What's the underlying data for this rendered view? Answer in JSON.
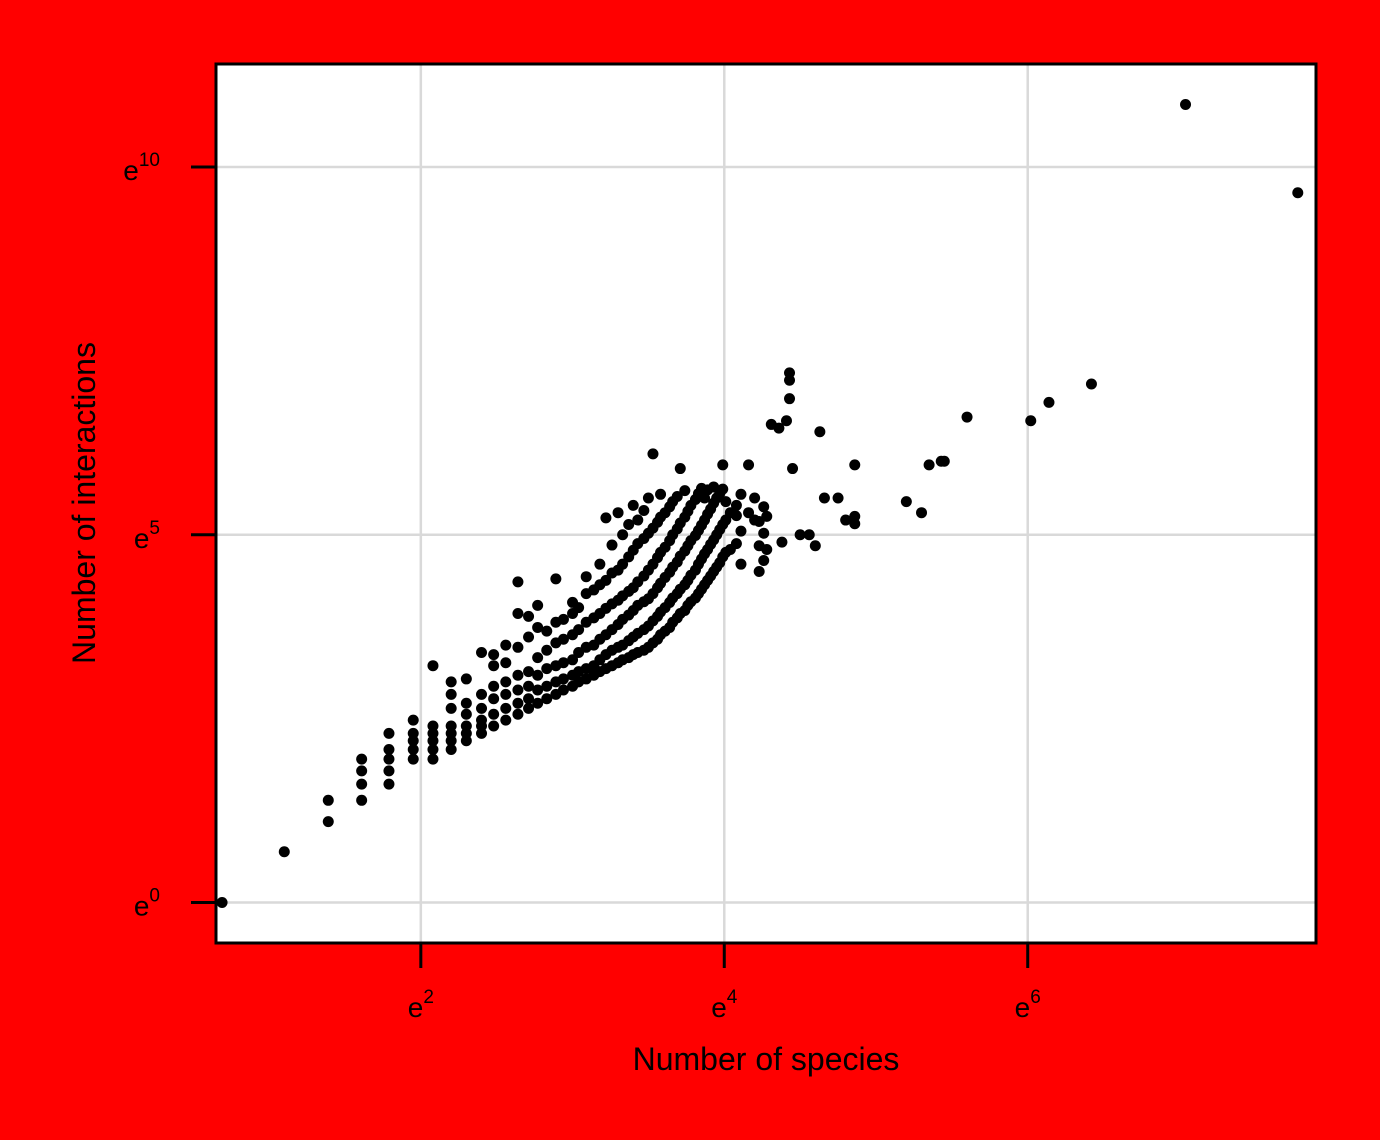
{
  "colors": {
    "background": "#ff0000",
    "plot_background": "#ffffff",
    "points": "#000000",
    "grid": "#d9d9d9"
  },
  "chart_data": {
    "type": "scatter",
    "title": "",
    "xlabel": "Number of species",
    "ylabel": "Number of interactions",
    "log_scale": "natural log (base e) on both axes",
    "xlim": [
      0.65,
      7.9
    ],
    "ylim": [
      -0.55,
      11.4
    ],
    "x_ticks": [
      {
        "value": 2,
        "base": "e",
        "exponent": "2"
      },
      {
        "value": 4,
        "base": "e",
        "exponent": "4"
      },
      {
        "value": 6,
        "base": "e",
        "exponent": "6"
      }
    ],
    "y_ticks": [
      {
        "value": 0,
        "base": "e",
        "exponent": "0"
      },
      {
        "value": 5,
        "base": "e",
        "exponent": "5"
      },
      {
        "value": 10,
        "base": "e",
        "exponent": "10"
      }
    ],
    "grid": true,
    "legend": "none",
    "series": [
      {
        "points_ln": [
          [
            0.69,
            0.0
          ],
          [
            1.1,
            0.69
          ],
          [
            1.39,
            1.1
          ],
          [
            1.39,
            1.39
          ],
          [
            1.61,
            1.39
          ],
          [
            1.61,
            1.61
          ],
          [
            1.61,
            1.79
          ],
          [
            1.61,
            1.95
          ],
          [
            1.79,
            1.61
          ],
          [
            1.79,
            1.79
          ],
          [
            1.79,
            1.95
          ],
          [
            1.79,
            2.08
          ],
          [
            1.79,
            2.3
          ],
          [
            1.95,
            1.95
          ],
          [
            1.95,
            2.08
          ],
          [
            1.95,
            2.2
          ],
          [
            1.95,
            2.3
          ],
          [
            1.95,
            2.48
          ],
          [
            2.08,
            1.95
          ],
          [
            2.08,
            2.08
          ],
          [
            2.08,
            2.2
          ],
          [
            2.08,
            2.3
          ],
          [
            2.08,
            2.4
          ],
          [
            2.08,
            3.22
          ],
          [
            2.2,
            2.08
          ],
          [
            2.2,
            2.2
          ],
          [
            2.2,
            2.3
          ],
          [
            2.2,
            2.4
          ],
          [
            2.2,
            2.64
          ],
          [
            2.2,
            2.83
          ],
          [
            2.2,
            3.0
          ],
          [
            2.3,
            2.2
          ],
          [
            2.3,
            2.3
          ],
          [
            2.3,
            2.4
          ],
          [
            2.3,
            2.56
          ],
          [
            2.3,
            2.71
          ],
          [
            2.3,
            3.04
          ],
          [
            2.4,
            2.3
          ],
          [
            2.4,
            2.4
          ],
          [
            2.4,
            2.48
          ],
          [
            2.4,
            2.64
          ],
          [
            2.4,
            2.83
          ],
          [
            2.4,
            3.4
          ],
          [
            2.48,
            2.4
          ],
          [
            2.48,
            2.56
          ],
          [
            2.48,
            2.77
          ],
          [
            2.48,
            2.94
          ],
          [
            2.48,
            3.22
          ],
          [
            2.48,
            3.37
          ],
          [
            2.56,
            2.48
          ],
          [
            2.56,
            2.64
          ],
          [
            2.56,
            2.83
          ],
          [
            2.56,
            3.0
          ],
          [
            2.56,
            3.26
          ],
          [
            2.56,
            3.5
          ],
          [
            2.64,
            2.56
          ],
          [
            2.64,
            2.71
          ],
          [
            2.64,
            2.89
          ],
          [
            2.64,
            3.09
          ],
          [
            2.64,
            3.47
          ],
          [
            2.64,
            3.93
          ],
          [
            2.64,
            4.36
          ],
          [
            2.71,
            2.64
          ],
          [
            2.71,
            2.77
          ],
          [
            2.71,
            2.94
          ],
          [
            2.71,
            3.14
          ],
          [
            2.71,
            3.61
          ],
          [
            2.71,
            3.89
          ],
          [
            2.77,
            2.71
          ],
          [
            2.77,
            2.89
          ],
          [
            2.77,
            3.09
          ],
          [
            2.77,
            3.33
          ],
          [
            2.77,
            3.74
          ],
          [
            2.77,
            4.04
          ],
          [
            2.83,
            2.77
          ],
          [
            2.83,
            2.94
          ],
          [
            2.83,
            3.18
          ],
          [
            2.83,
            3.43
          ],
          [
            2.83,
            3.69
          ],
          [
            2.89,
            2.83
          ],
          [
            2.89,
            3.0
          ],
          [
            2.89,
            3.22
          ],
          [
            2.89,
            3.53
          ],
          [
            2.89,
            3.81
          ],
          [
            2.89,
            4.4
          ],
          [
            2.94,
            2.89
          ],
          [
            2.94,
            3.04
          ],
          [
            2.94,
            3.26
          ],
          [
            2.94,
            3.58
          ],
          [
            2.94,
            3.85
          ],
          [
            3.0,
            2.94
          ],
          [
            3.0,
            3.09
          ],
          [
            3.0,
            3.3
          ],
          [
            3.0,
            3.64
          ],
          [
            3.0,
            3.93
          ],
          [
            3.0,
            4.08
          ],
          [
            3.04,
            3.0
          ],
          [
            3.04,
            3.14
          ],
          [
            3.04,
            3.4
          ],
          [
            3.04,
            3.71
          ],
          [
            3.04,
            4.01
          ],
          [
            3.09,
            3.04
          ],
          [
            3.09,
            3.18
          ],
          [
            3.09,
            3.47
          ],
          [
            3.09,
            3.81
          ],
          [
            3.09,
            4.2
          ],
          [
            3.09,
            4.43
          ],
          [
            3.14,
            3.09
          ],
          [
            3.14,
            3.22
          ],
          [
            3.14,
            3.5
          ],
          [
            3.14,
            3.87
          ],
          [
            3.14,
            4.25
          ],
          [
            3.18,
            3.14
          ],
          [
            3.18,
            3.3
          ],
          [
            3.18,
            3.58
          ],
          [
            3.18,
            3.93
          ],
          [
            3.18,
            4.32
          ],
          [
            3.18,
            4.6
          ],
          [
            3.22,
            3.18
          ],
          [
            3.22,
            3.37
          ],
          [
            3.22,
            3.64
          ],
          [
            3.22,
            4.0
          ],
          [
            3.22,
            4.38
          ],
          [
            3.22,
            5.23
          ],
          [
            3.26,
            3.22
          ],
          [
            3.26,
            3.43
          ],
          [
            3.26,
            3.71
          ],
          [
            3.26,
            4.06
          ],
          [
            3.26,
            4.48
          ],
          [
            3.26,
            4.86
          ],
          [
            3.3,
            3.26
          ],
          [
            3.3,
            3.47
          ],
          [
            3.3,
            3.78
          ],
          [
            3.3,
            4.11
          ],
          [
            3.3,
            4.52
          ],
          [
            3.3,
            5.3
          ],
          [
            3.33,
            3.3
          ],
          [
            3.33,
            3.5
          ],
          [
            3.33,
            3.85
          ],
          [
            3.33,
            4.17
          ],
          [
            3.33,
            4.6
          ],
          [
            3.33,
            5.0
          ],
          [
            3.37,
            3.33
          ],
          [
            3.37,
            3.56
          ],
          [
            3.37,
            3.91
          ],
          [
            3.37,
            4.23
          ],
          [
            3.37,
            4.7
          ],
          [
            3.37,
            5.14
          ],
          [
            3.4,
            3.37
          ],
          [
            3.4,
            3.61
          ],
          [
            3.4,
            3.97
          ],
          [
            3.4,
            4.28
          ],
          [
            3.4,
            4.79
          ],
          [
            3.4,
            5.4
          ],
          [
            3.43,
            3.4
          ],
          [
            3.43,
            3.66
          ],
          [
            3.43,
            4.04
          ],
          [
            3.43,
            4.36
          ],
          [
            3.43,
            4.88
          ],
          [
            3.43,
            5.2
          ],
          [
            3.47,
            3.43
          ],
          [
            3.47,
            3.71
          ],
          [
            3.47,
            4.09
          ],
          [
            3.47,
            4.44
          ],
          [
            3.47,
            4.95
          ],
          [
            3.47,
            5.33
          ],
          [
            3.5,
            3.47
          ],
          [
            3.5,
            3.76
          ],
          [
            3.5,
            4.13
          ],
          [
            3.5,
            4.52
          ],
          [
            3.5,
            5.02
          ],
          [
            3.5,
            5.5
          ],
          [
            3.53,
            3.53
          ],
          [
            3.53,
            3.83
          ],
          [
            3.53,
            4.2
          ],
          [
            3.53,
            4.6
          ],
          [
            3.53,
            5.09
          ],
          [
            3.53,
            6.1
          ],
          [
            3.56,
            3.58
          ],
          [
            3.56,
            3.89
          ],
          [
            3.56,
            4.28
          ],
          [
            3.56,
            4.69
          ],
          [
            3.56,
            5.17
          ],
          [
            3.58,
            3.64
          ],
          [
            3.58,
            3.95
          ],
          [
            3.58,
            4.34
          ],
          [
            3.58,
            4.76
          ],
          [
            3.58,
            5.24
          ],
          [
            3.58,
            5.55
          ],
          [
            3.61,
            3.69
          ],
          [
            3.61,
            4.01
          ],
          [
            3.61,
            4.42
          ],
          [
            3.61,
            4.83
          ],
          [
            3.61,
            5.3
          ],
          [
            3.64,
            3.74
          ],
          [
            3.64,
            4.08
          ],
          [
            3.64,
            4.49
          ],
          [
            3.64,
            4.92
          ],
          [
            3.64,
            5.38
          ],
          [
            3.66,
            3.81
          ],
          [
            3.66,
            4.14
          ],
          [
            3.66,
            4.56
          ],
          [
            3.66,
            5.0
          ],
          [
            3.66,
            5.45
          ],
          [
            3.69,
            3.87
          ],
          [
            3.69,
            4.2
          ],
          [
            3.69,
            4.63
          ],
          [
            3.69,
            5.08
          ],
          [
            3.69,
            5.52
          ],
          [
            3.71,
            3.93
          ],
          [
            3.71,
            4.26
          ],
          [
            3.71,
            4.71
          ],
          [
            3.71,
            5.16
          ],
          [
            3.71,
            5.9
          ],
          [
            3.74,
            3.97
          ],
          [
            3.74,
            4.32
          ],
          [
            3.74,
            4.78
          ],
          [
            3.74,
            5.24
          ],
          [
            3.74,
            5.6
          ],
          [
            3.76,
            4.04
          ],
          [
            3.76,
            4.38
          ],
          [
            3.76,
            4.85
          ],
          [
            3.76,
            5.32
          ],
          [
            3.78,
            4.09
          ],
          [
            3.78,
            4.45
          ],
          [
            3.78,
            4.92
          ],
          [
            3.78,
            5.4
          ],
          [
            3.81,
            4.14
          ],
          [
            3.81,
            4.52
          ],
          [
            3.81,
            4.99
          ],
          [
            3.81,
            5.48
          ],
          [
            3.83,
            4.2
          ],
          [
            3.83,
            4.6
          ],
          [
            3.83,
            5.06
          ],
          [
            3.83,
            5.56
          ],
          [
            3.85,
            4.26
          ],
          [
            3.85,
            4.67
          ],
          [
            3.85,
            5.13
          ],
          [
            3.85,
            5.63
          ],
          [
            3.87,
            4.32
          ],
          [
            3.87,
            4.74
          ],
          [
            3.87,
            5.2
          ],
          [
            3.87,
            5.5
          ],
          [
            3.89,
            4.38
          ],
          [
            3.89,
            4.8
          ],
          [
            3.89,
            5.28
          ],
          [
            3.89,
            5.61
          ],
          [
            3.91,
            4.44
          ],
          [
            3.91,
            4.87
          ],
          [
            3.91,
            5.35
          ],
          [
            3.93,
            4.5
          ],
          [
            3.93,
            4.93
          ],
          [
            3.93,
            5.43
          ],
          [
            3.93,
            5.65
          ],
          [
            3.95,
            4.56
          ],
          [
            3.95,
            5.0
          ],
          [
            3.95,
            5.5
          ],
          [
            3.97,
            4.62
          ],
          [
            3.97,
            5.07
          ],
          [
            3.97,
            5.56
          ],
          [
            3.99,
            4.7
          ],
          [
            3.99,
            5.14
          ],
          [
            3.99,
            5.62
          ],
          [
            3.99,
            5.95
          ],
          [
            4.01,
            4.76
          ],
          [
            4.01,
            5.2
          ],
          [
            4.01,
            5.45
          ],
          [
            4.04,
            4.8
          ],
          [
            4.04,
            5.3
          ],
          [
            4.08,
            4.88
          ],
          [
            4.08,
            5.26
          ],
          [
            4.08,
            5.4
          ],
          [
            4.11,
            4.6
          ],
          [
            4.11,
            5.05
          ],
          [
            4.11,
            5.55
          ],
          [
            4.16,
            5.3
          ],
          [
            4.16,
            5.95
          ],
          [
            4.2,
            5.5
          ],
          [
            4.2,
            5.2
          ],
          [
            4.23,
            4.5
          ],
          [
            4.23,
            4.85
          ],
          [
            4.23,
            5.18
          ],
          [
            4.26,
            4.65
          ],
          [
            4.26,
            5.02
          ],
          [
            4.26,
            5.38
          ],
          [
            4.28,
            4.8
          ],
          [
            4.28,
            5.25
          ],
          [
            4.31,
            6.5
          ],
          [
            4.36,
            6.45
          ],
          [
            4.41,
            6.55
          ],
          [
            4.38,
            4.9
          ],
          [
            4.43,
            7.1
          ],
          [
            4.43,
            7.2
          ],
          [
            4.43,
            6.85
          ],
          [
            4.45,
            5.9
          ],
          [
            4.5,
            5.0
          ],
          [
            4.56,
            5.0
          ],
          [
            4.63,
            6.4
          ],
          [
            4.6,
            4.85
          ],
          [
            4.66,
            5.5
          ],
          [
            4.75,
            5.5
          ],
          [
            4.8,
            5.2
          ],
          [
            4.86,
            5.25
          ],
          [
            4.86,
            5.15
          ],
          [
            4.86,
            5.95
          ],
          [
            5.2,
            5.45
          ],
          [
            5.3,
            5.3
          ],
          [
            5.35,
            5.95
          ],
          [
            5.43,
            6.0
          ],
          [
            5.45,
            6.0
          ],
          [
            5.6,
            6.6
          ],
          [
            6.02,
            6.55
          ],
          [
            6.14,
            6.8
          ],
          [
            6.42,
            7.05
          ],
          [
            7.04,
            10.85
          ],
          [
            7.78,
            9.65
          ]
        ]
      }
    ]
  }
}
